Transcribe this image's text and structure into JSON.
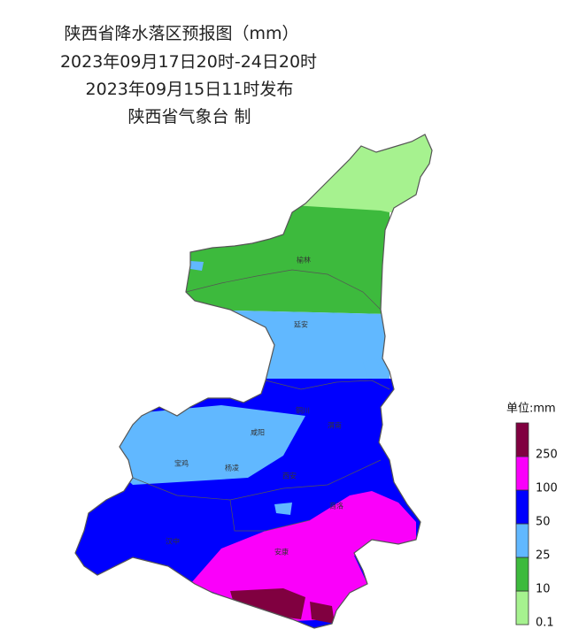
{
  "header": {
    "title": "陕西省降水落区预报图（mm）",
    "period": "2023年09月17日20时-24日20时",
    "issued": "2023年09月15日11时发布",
    "issuer": "陕西省气象台 制"
  },
  "cities": [
    {
      "label": "榆林"
    },
    {
      "label": "延安"
    },
    {
      "label": "铜川"
    },
    {
      "label": "渭南"
    },
    {
      "label": "咸阳"
    },
    {
      "label": "宝鸡"
    },
    {
      "label": "杨凌"
    },
    {
      "label": "西安"
    },
    {
      "label": "商洛"
    },
    {
      "label": "汉中"
    },
    {
      "label": "安康"
    }
  ],
  "legend": {
    "unit": "单位:mm",
    "items": [
      {
        "label": "0.1",
        "color": "#a6f28f"
      },
      {
        "label": "10",
        "color": "#3dba3d"
      },
      {
        "label": "25",
        "color": "#61b8ff"
      },
      {
        "label": "50",
        "color": "#0000fe"
      },
      {
        "label": "100",
        "color": "#fa00fa"
      },
      {
        "label": "250",
        "color": "#800040"
      }
    ]
  }
}
